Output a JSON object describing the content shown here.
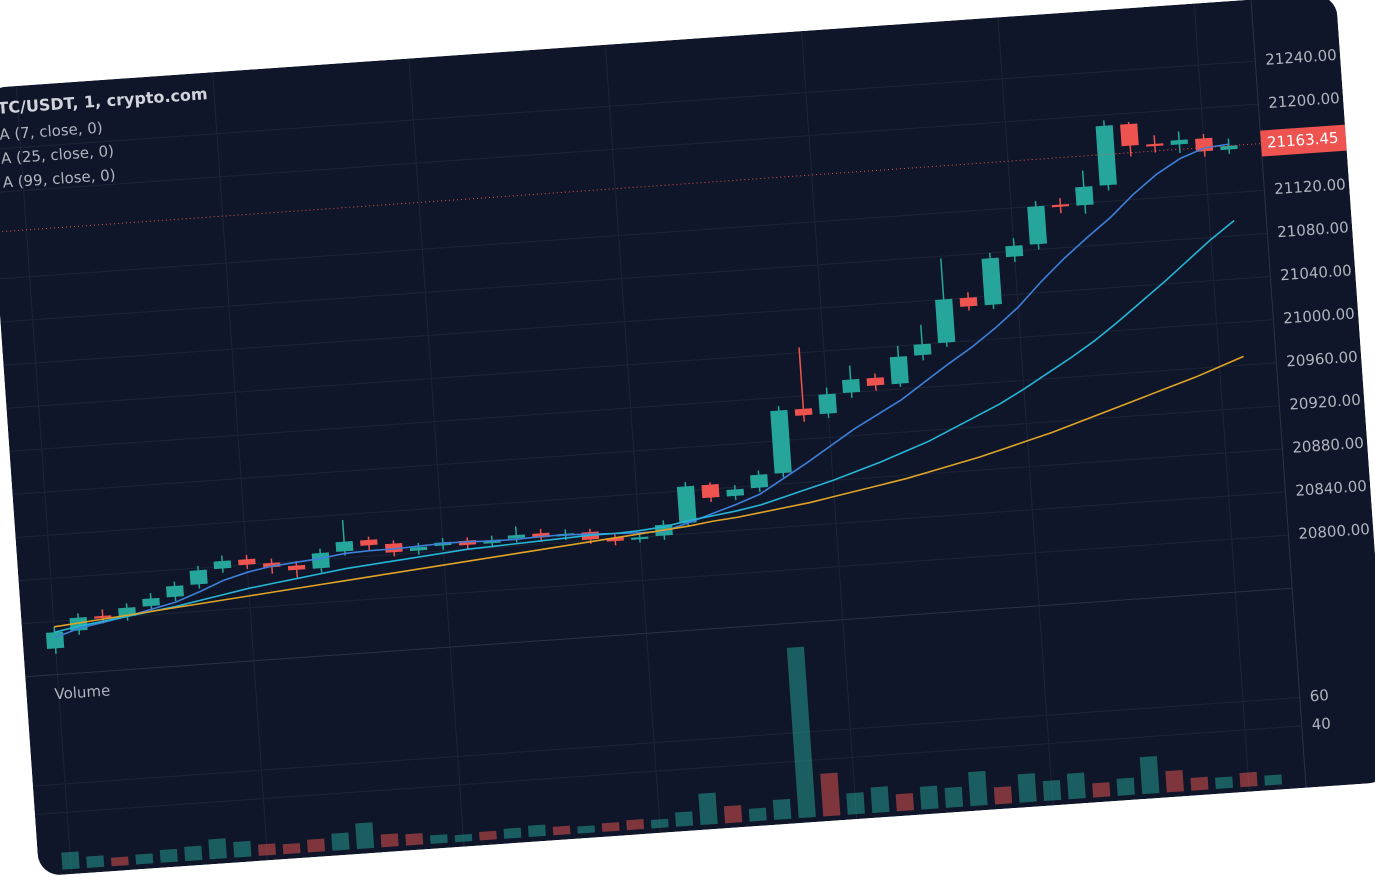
{
  "chart_data": {
    "type": "candlestick",
    "title": "TC/USDT, 1, crypto.com",
    "up_color": "#26a69a",
    "down_color": "#ef5350",
    "open": [
      20775,
      20790,
      20802,
      20800,
      20808,
      20815,
      20825,
      20838,
      20845,
      20840,
      20836,
      20832,
      20846,
      20855,
      20850,
      20842,
      20845,
      20848,
      20844,
      20847,
      20850,
      20846,
      20848,
      20841,
      20838,
      20840,
      20850,
      20884,
      20872,
      20878,
      20890,
      20948,
      20942,
      20960,
      20972,
      20965,
      20990,
      21000,
      21040,
      21032,
      21075,
      21085,
      21120,
      21118,
      21135,
      21190,
      21170,
      21168,
      21172,
      21160
    ],
    "high": [
      20795,
      20806,
      20808,
      20812,
      20820,
      20829,
      20842,
      20850,
      20849,
      20844,
      20840,
      20850,
      20875,
      20858,
      20853,
      20849,
      20852,
      20851,
      20851,
      20858,
      20854,
      20852,
      20851,
      20844,
      20844,
      20854,
      20888,
      20886,
      20882,
      20894,
      20952,
      21005,
      20966,
      20985,
      20976,
      21000,
      21018,
      21078,
      21045,
      21080,
      21092,
      21125,
      21126,
      21150,
      21195,
      21192,
      21178,
      21180,
      21176,
      21170
    ],
    "low": [
      20770,
      20786,
      20795,
      20796,
      20804,
      20811,
      20821,
      20834,
      20836,
      20830,
      20825,
      20828,
      20842,
      20845,
      20838,
      20838,
      20841,
      20840,
      20840,
      20843,
      20842,
      20842,
      20837,
      20834,
      20835,
      20836,
      20847,
      20868,
      20868,
      20874,
      20886,
      20936,
      20938,
      20955,
      20960,
      20962,
      20985,
      20996,
      21028,
      21028,
      21070,
      21080,
      21112,
      21110,
      21130,
      21160,
      21162,
      21160,
      21155,
      21156
    ],
    "close": [
      20790,
      20802,
      20800,
      20808,
      20815,
      20825,
      20838,
      20845,
      20840,
      20836,
      20832,
      20846,
      20855,
      20850,
      20842,
      20845,
      20848,
      20844,
      20847,
      20850,
      20846,
      20848,
      20841,
      20838,
      20840,
      20850,
      20884,
      20872,
      20878,
      20890,
      20948,
      20942,
      20960,
      20972,
      20965,
      20990,
      21000,
      21040,
      21032,
      21075,
      21085,
      21120,
      21118,
      21135,
      21190,
      21170,
      21168,
      21172,
      21160,
      21163.45
    ],
    "series": [
      {
        "name": "A (7, close, 0)",
        "color": "#3d7fd9",
        "values": [
          20785,
          20792,
          20796,
          20800,
          20805,
          20810,
          20818,
          20827,
          20833,
          20837,
          20839,
          20841,
          20844,
          20845,
          20845,
          20846,
          20847,
          20847,
          20846,
          20846,
          20847,
          20847,
          20846,
          20845,
          20844,
          20844,
          20850,
          20857,
          20864,
          20872,
          20885,
          20898,
          20912,
          20926,
          20938,
          20950,
          20965,
          20980,
          20994,
          21010,
          21028,
          21050,
          21070,
          21088,
          21105,
          21125,
          21142,
          21155,
          21163,
          21165
        ]
      },
      {
        "name": "A (25, close, 0)",
        "color": "#26b5d6",
        "values": [
          20790,
          20794,
          20797,
          20800,
          20803,
          20806,
          20810,
          20814,
          20818,
          20821,
          20824,
          20827,
          20830,
          20832,
          20834,
          20836,
          20838,
          20840,
          20841,
          20842,
          20843,
          20844,
          20845,
          20845,
          20846,
          20848,
          20852,
          20855,
          20858,
          20862,
          20868,
          20874,
          20880,
          20887,
          20894,
          20902,
          20910,
          20920,
          20930,
          20940,
          20952,
          20965,
          20978,
          20992,
          21008,
          21025,
          21042,
          21060,
          21078,
          21094
        ]
      },
      {
        "name": "A (99, close, 0)",
        "color": "#e0a326",
        "values": [
          20795,
          20797,
          20799,
          20801,
          20803,
          20805,
          20807,
          20809,
          20811,
          20813,
          20815,
          20817,
          20819,
          20821,
          20823,
          20825,
          20827,
          20829,
          20831,
          20833,
          20835,
          20837,
          20839,
          20841,
          20843,
          20845,
          20847,
          20850,
          20852,
          20855,
          20858,
          20861,
          20865,
          20869,
          20873,
          20877,
          20882,
          20887,
          20892,
          20898,
          20904,
          20910,
          20917,
          20924,
          20931,
          20938,
          20945,
          20952,
          20960,
          20968
        ]
      }
    ],
    "ylim": [
      20760,
      21260
    ],
    "yticks": [
      {
        "value": 20800,
        "label": "20800.00"
      },
      {
        "value": 20840,
        "label": "20840.00"
      },
      {
        "value": 20880,
        "label": "20880.00"
      },
      {
        "value": 20920,
        "label": "20920.00"
      },
      {
        "value": 20960,
        "label": "20960.00"
      },
      {
        "value": 21000,
        "label": "21000.00"
      },
      {
        "value": 21040,
        "label": "21040.00"
      },
      {
        "value": 21080,
        "label": "21080.00"
      },
      {
        "value": 21120,
        "label": "21120.00"
      },
      {
        "value": 21200,
        "label": "21200.00"
      },
      {
        "value": 21240,
        "label": "21240.00"
      }
    ],
    "grid": true,
    "volume": {
      "label": "Volume",
      "values": [
        12,
        8,
        6,
        7,
        9,
        10,
        14,
        11,
        8,
        7,
        9,
        12,
        18,
        9,
        8,
        6,
        5,
        6,
        7,
        8,
        6,
        5,
        6,
        7,
        6,
        10,
        22,
        12,
        9,
        14,
        120,
        30,
        15,
        18,
        12,
        16,
        14,
        24,
        12,
        20,
        14,
        18,
        10,
        12,
        26,
        15,
        9,
        8,
        10,
        7
      ],
      "ylim": [
        0,
        130
      ],
      "yticks": [
        40,
        60
      ]
    }
  }
}
